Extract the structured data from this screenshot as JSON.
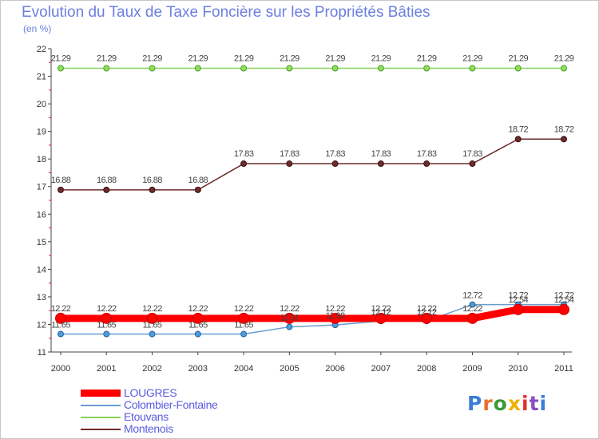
{
  "title": "Evolution du Taux de Taxe Foncière sur les Propriétés Bâties",
  "unit_label": "(en %)",
  "logo_text": "Proxiti",
  "colors": {
    "LOUGRES": "#ff0000",
    "Colombier-Fontaine": "#6a9cd0",
    "Etouvans": "#86d45a",
    "Montenois": "#6e2b2b",
    "title": "#6b7fe0"
  },
  "chart_data": {
    "type": "line",
    "title": "Evolution du Taux de Taxe Foncière sur les Propriétés Bâties",
    "ylabel": "(en %)",
    "xlabel": "",
    "x": [
      "2000",
      "2001",
      "2002",
      "2003",
      "2004",
      "2005",
      "2006",
      "2007",
      "2008",
      "2009",
      "2010",
      "2011"
    ],
    "ylim": [
      11,
      22
    ],
    "yticks": [
      11,
      12,
      13,
      14,
      15,
      16,
      17,
      18,
      19,
      20,
      21,
      22
    ],
    "grid": false,
    "legend_position": "bottom-left",
    "series": [
      {
        "name": "LOUGRES",
        "values": [
          12.22,
          12.22,
          12.22,
          12.22,
          12.22,
          12.22,
          12.22,
          12.22,
          12.22,
          12.22,
          12.54,
          12.54
        ],
        "labels": [
          "12.22",
          "12.22",
          "12.22",
          "12.22",
          "12.22",
          "12.22",
          "12.22",
          "12.22",
          "12.22",
          "12.22",
          "12.54",
          "12.54"
        ]
      },
      {
        "name": "Colombier-Fontaine",
        "values": [
          11.65,
          11.65,
          11.65,
          11.65,
          11.65,
          11.91,
          11.98,
          12.12,
          12.12,
          12.72,
          12.72,
          12.72
        ],
        "labels": [
          "11.65",
          "11.65",
          "11.65",
          "11.65",
          "11.65",
          "11.91",
          "11.98",
          "12.12",
          "12.12",
          "12.72",
          "12.72",
          "12.72"
        ]
      },
      {
        "name": "Etouvans",
        "values": [
          21.29,
          21.29,
          21.29,
          21.29,
          21.29,
          21.29,
          21.29,
          21.29,
          21.29,
          21.29,
          21.29,
          21.29
        ],
        "labels": [
          "21.29",
          "21.29",
          "21.29",
          "21.29",
          "21.29",
          "21.29",
          "21.29",
          "21.29",
          "21.29",
          "21.29",
          "21.29",
          "21.29"
        ]
      },
      {
        "name": "Montenois",
        "values": [
          16.88,
          16.88,
          16.88,
          16.88,
          17.83,
          17.83,
          17.83,
          17.83,
          17.83,
          17.83,
          18.72,
          18.72
        ],
        "labels": [
          "16.88",
          "16.88",
          "16.88",
          "16.88",
          "17.83",
          "17.83",
          "17.83",
          "17.83",
          "17.83",
          "17.83",
          "18.72",
          "18.72"
        ]
      }
    ]
  }
}
